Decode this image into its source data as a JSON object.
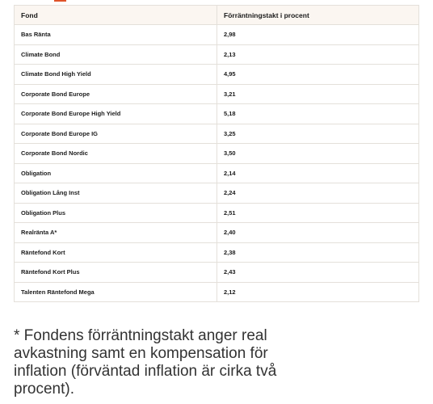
{
  "table": {
    "headers": [
      "Fond",
      "Förräntningstakt i procent"
    ],
    "rows": [
      {
        "fund": "Bas Ränta",
        "rate": "2,98"
      },
      {
        "fund": "Climate Bond",
        "rate": "2,13"
      },
      {
        "fund": "Climate Bond High Yield",
        "rate": "4,95"
      },
      {
        "fund": "Corporate Bond Europe",
        "rate": "3,21"
      },
      {
        "fund": "Corporate Bond Europe High Yield",
        "rate": "5,18"
      },
      {
        "fund": "Corporate Bond Europe IG",
        "rate": "3,25"
      },
      {
        "fund": "Corporate Bond Nordic",
        "rate": "3,50"
      },
      {
        "fund": "Obligation",
        "rate": "2,14"
      },
      {
        "fund": "Obligation Lång Inst",
        "rate": "2,24"
      },
      {
        "fund": "Obligation Plus",
        "rate": "2,51"
      },
      {
        "fund": "Realränta A*",
        "rate": "2,40"
      },
      {
        "fund": "Räntefond Kort",
        "rate": "2,38"
      },
      {
        "fund": "Räntefond Kort Plus",
        "rate": "2,43"
      },
      {
        "fund": "Talenten Räntefond Mega",
        "rate": "2,12"
      }
    ]
  },
  "footnote": "* Fondens förräntningstakt anger real avkastning samt en kompensation för inflation (förväntad inflation är cirka två procent).",
  "colors": {
    "accent": "#e0542a",
    "header_bg": "#fbf6f1",
    "border": "#e4e0da"
  }
}
